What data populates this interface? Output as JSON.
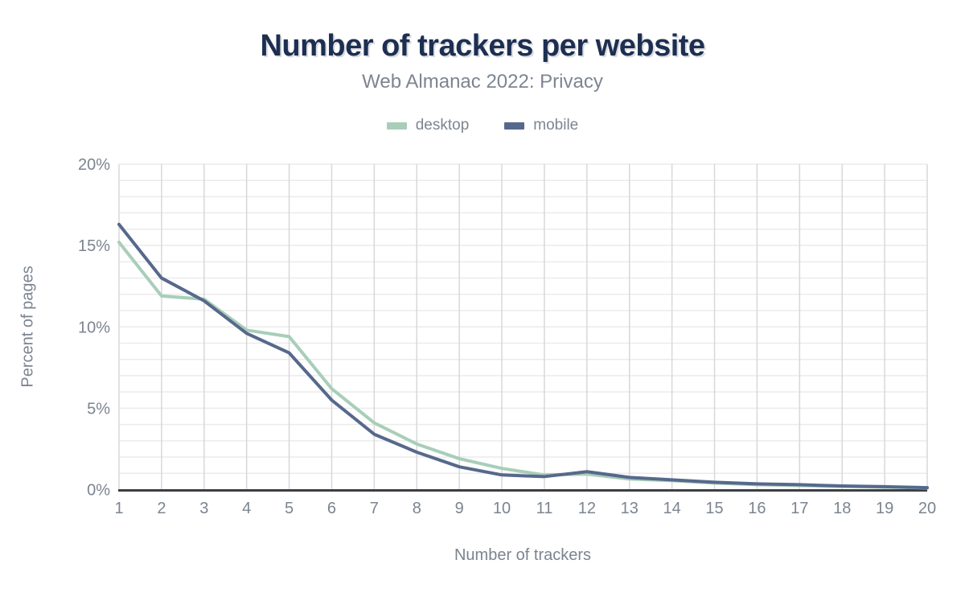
{
  "page": {
    "title": "Number of trackers per website",
    "subtitle": "Web Almanac 2022: Privacy"
  },
  "axes": {
    "y_title": "Percent of pages",
    "x_title": "Number of trackers"
  },
  "legend": {
    "items": [
      {
        "label": "desktop",
        "color": "#a8ceb9"
      },
      {
        "label": "mobile",
        "color": "#56698c"
      }
    ]
  },
  "chart_data": {
    "type": "line",
    "title": "Number of trackers per website",
    "subtitle": "Web Almanac 2022: Privacy",
    "xlabel": "Number of trackers",
    "ylabel": "Percent of pages",
    "x": [
      1,
      2,
      3,
      4,
      5,
      6,
      7,
      8,
      9,
      10,
      11,
      12,
      13,
      14,
      15,
      16,
      17,
      18,
      19,
      20
    ],
    "series": [
      {
        "name": "desktop",
        "color": "#a8ceb9",
        "values": [
          15.2,
          11.9,
          11.7,
          9.8,
          9.4,
          6.2,
          4.1,
          2.8,
          1.9,
          1.3,
          0.9,
          0.95,
          0.65,
          0.55,
          0.4,
          0.3,
          0.25,
          0.2,
          0.15,
          0.1
        ]
      },
      {
        "name": "mobile",
        "color": "#56698c",
        "values": [
          16.3,
          13.0,
          11.6,
          9.6,
          8.4,
          5.5,
          3.4,
          2.3,
          1.4,
          0.9,
          0.8,
          1.1,
          0.75,
          0.6,
          0.45,
          0.35,
          0.3,
          0.22,
          0.18,
          0.12
        ]
      }
    ],
    "ylim": [
      0,
      20
    ],
    "ytick_major_step": 5,
    "ytick_minor_step": 1,
    "ytick_suffix": "%",
    "xtick_labels": [
      "1",
      "2",
      "3",
      "4",
      "5",
      "6",
      "7",
      "8",
      "9",
      "10",
      "11",
      "12",
      "13",
      "14",
      "15",
      "16",
      "17",
      "18",
      "19",
      "20"
    ],
    "grid": true,
    "legend_position": "top"
  },
  "colors": {
    "title": "#1d2f51",
    "subtitle": "#7d8591",
    "tick_label": "#7b8490",
    "grid_horizontal": "#ebebeb",
    "grid_vertical": "#d8d8d8",
    "axis_line": "#3b3e42"
  }
}
